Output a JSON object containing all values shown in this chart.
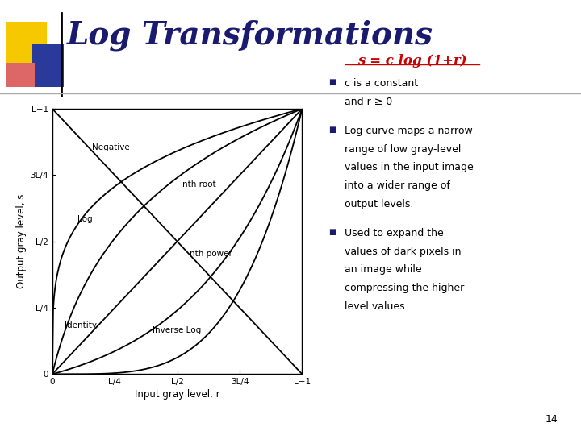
{
  "title": "Log Transformations",
  "title_color": "#1a1a6e",
  "title_fontsize": 28,
  "bg_color": "#ffffff",
  "formula": "s = c log (1+r)",
  "formula_color": "#cc0000",
  "page_num": "14",
  "xlabel": "Input gray level, r",
  "ylabel": "Output gray level, s",
  "ytick_labels": [
    "0",
    "L/4",
    "L/2",
    "3L/4",
    "L−1"
  ],
  "xtick_labels": [
    "0",
    "L/4",
    "L/2",
    "3L/4",
    "L−1"
  ],
  "accent_yellow": "#f5c800",
  "accent_blue": "#2a3a9a",
  "accent_red": "#cc2222",
  "accent_pink": "#dd6666",
  "bullet_color": "#1a1a6e",
  "text_color": "#000000",
  "b1l1": "c is a constant",
  "b1l2": "and r ≥ 0",
  "b2_lines": [
    "Log curve maps a narrow",
    "range of low gray-level",
    "values in the input image",
    "into a wider range of",
    "output levels."
  ],
  "b3_lines": [
    "Used to expand the",
    "values of dark pixels in",
    "an image while",
    "compressing the higher-",
    "level values."
  ]
}
